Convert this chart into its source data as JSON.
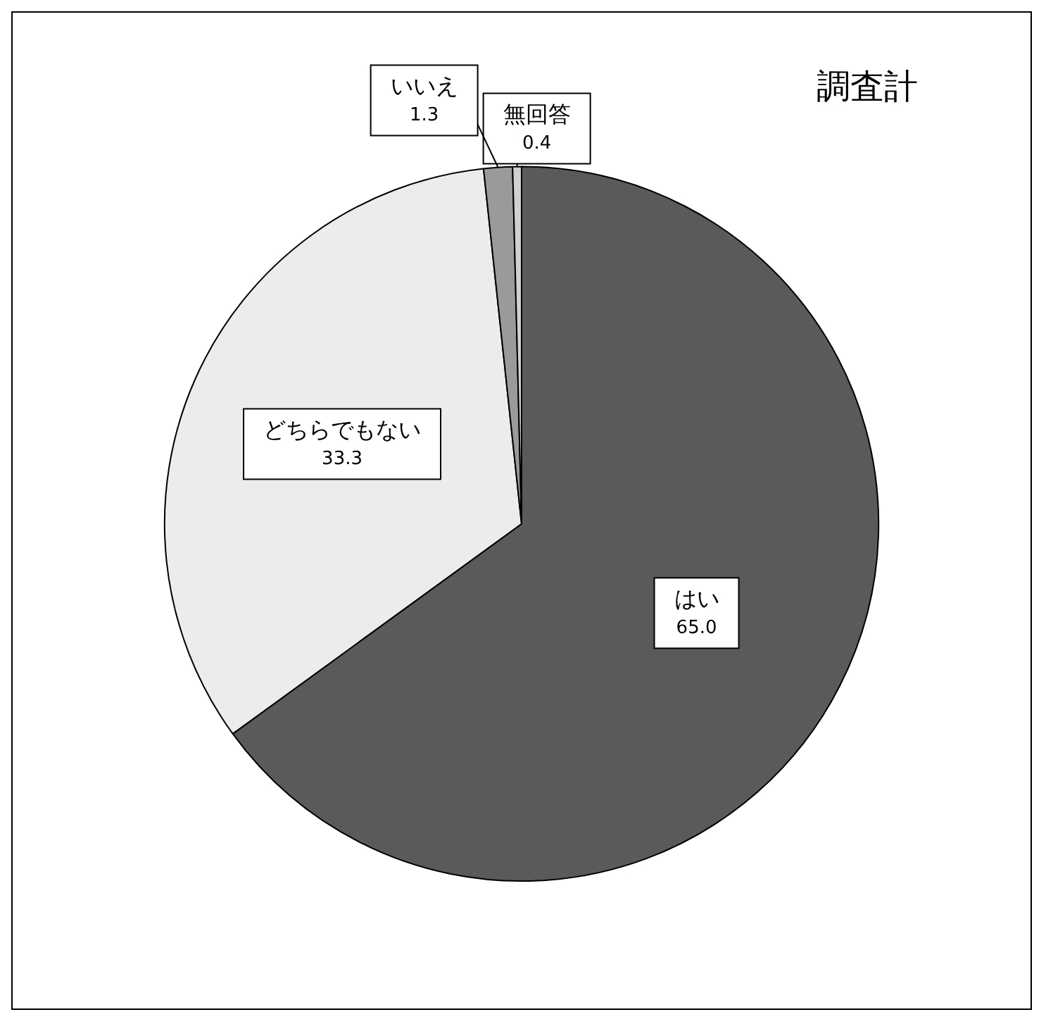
{
  "chart_data": {
    "type": "pie",
    "title": "調査計",
    "categories": [
      "はい",
      "どちらでもない",
      "いいえ",
      "無回答"
    ],
    "values": [
      65.0,
      33.3,
      1.3,
      0.4
    ],
    "colors": [
      "#5a5a5a",
      "#ececec",
      "#9a9a9a",
      "#d0d0d0"
    ],
    "value_labels": [
      "65.0",
      "33.3",
      "1.3",
      "0.4"
    ],
    "legend": false
  }
}
